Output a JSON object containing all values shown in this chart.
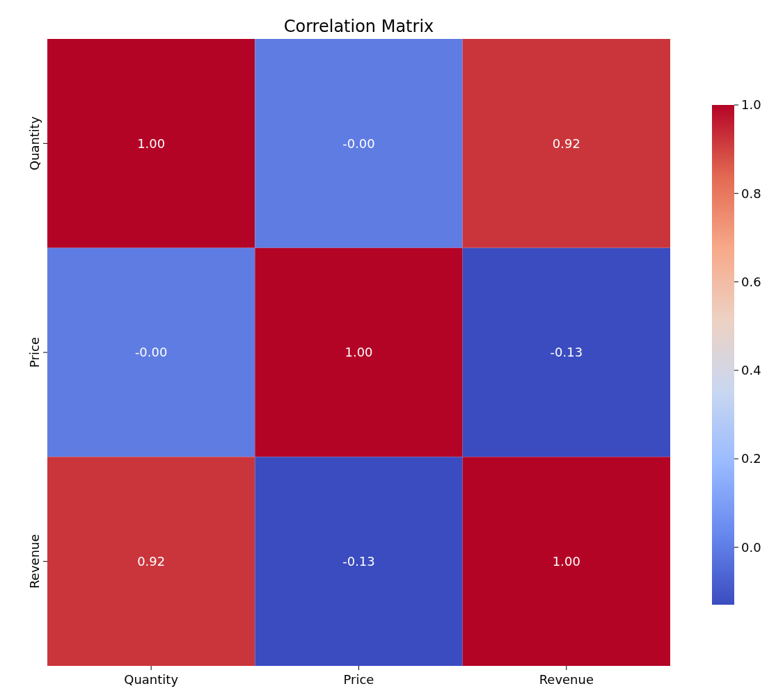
{
  "chart_data": {
    "type": "heatmap",
    "title": "Correlation Matrix",
    "categories": [
      "Quantity",
      "Price",
      "Revenue"
    ],
    "y_categories": [
      "Quantity",
      "Price",
      "Revenue"
    ],
    "cells": [
      [
        1,
        0,
        0.92
      ],
      [
        0,
        1,
        -0.13
      ],
      [
        0.92,
        -0.13,
        1
      ]
    ],
    "cell_labels": [
      [
        "1.00",
        "-0.00",
        "0.92"
      ],
      [
        "-0.00",
        "1.00",
        "-0.13"
      ],
      [
        "0.92",
        "-0.13",
        "1.00"
      ]
    ],
    "clim": [
      -0.13,
      1
    ],
    "cticks": [
      {
        "value": 0,
        "label": "0.0"
      },
      {
        "value": 0.2,
        "label": "0.2"
      },
      {
        "value": 0.4,
        "label": "0.4"
      },
      {
        "value": 0.6,
        "label": "0.6"
      },
      {
        "value": 0.8,
        "label": "0.8"
      },
      {
        "value": 1,
        "label": "1.0"
      }
    ]
  }
}
